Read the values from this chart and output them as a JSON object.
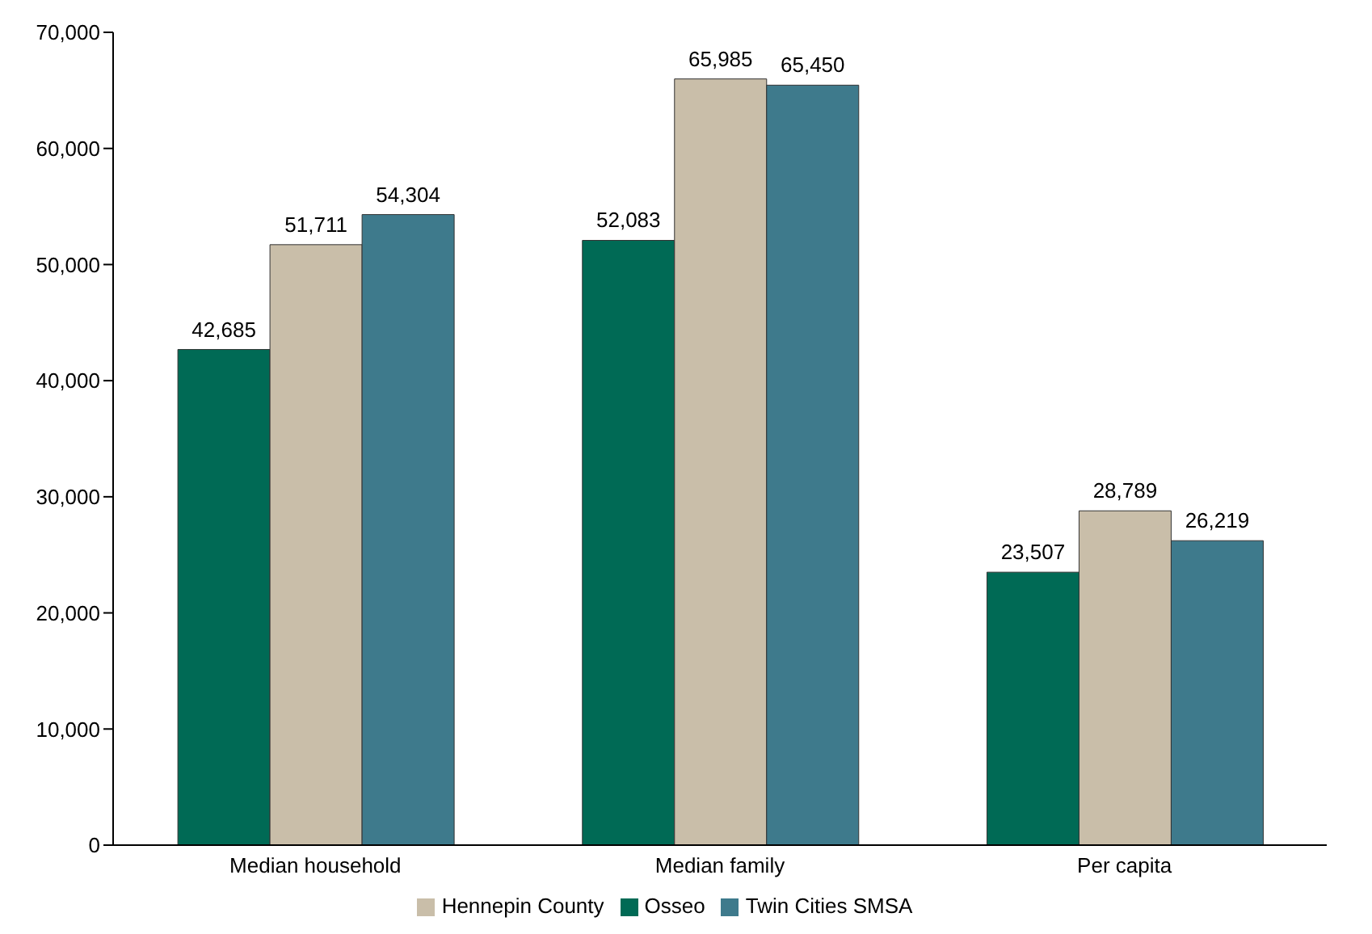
{
  "chart_data": {
    "type": "bar",
    "categories": [
      "Median household",
      "Median family",
      "Per capita"
    ],
    "series": [
      {
        "name": "Osseo",
        "color": "#006a55",
        "values": [
          42685,
          52083,
          23507
        ],
        "value_labels": [
          "42,685",
          "52,083",
          "23,507"
        ]
      },
      {
        "name": "Hennepin County",
        "color": "#c9bea9",
        "values": [
          51711,
          65985,
          28789
        ],
        "value_labels": [
          "51,711",
          "65,985",
          "28,789"
        ]
      },
      {
        "name": "Twin Cities SMSA",
        "color": "#3e7a8c",
        "values": [
          54304,
          65450,
          26219
        ],
        "value_labels": [
          "54,304",
          "65,450",
          "26,219"
        ]
      }
    ],
    "ylim": [
      0,
      70000
    ],
    "yticks": [
      0,
      {
        "value": 10000,
        "label": "10,000"
      },
      {
        "value": 20000,
        "label": "20,000"
      },
      {
        "value": 30000,
        "label": "30,000"
      },
      {
        "value": 40000,
        "label": "40,000"
      },
      {
        "value": 50000,
        "label": "50,000"
      },
      {
        "value": 60000,
        "label": "60,000"
      },
      {
        "value": 70000,
        "label": "70,000"
      }
    ],
    "grid": false,
    "legend": "bottom"
  }
}
